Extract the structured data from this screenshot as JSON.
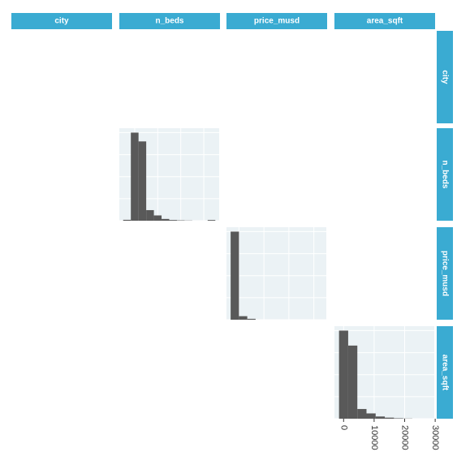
{
  "strips": [
    "city",
    "n_beds",
    "price_musd",
    "area_sqft"
  ],
  "chart_data": [
    {
      "type": "histogram",
      "color": "#595959",
      "grid": true,
      "show_tick_labels": false,
      "bins": [
        -0.5,
        0.5,
        1.5,
        2.5,
        3.5,
        4.5,
        5.5,
        6.5,
        7.5,
        8.5,
        9.5,
        10.5,
        11.5
      ],
      "counts": [
        10,
        1000,
        900,
        120,
        60,
        20,
        8,
        4,
        2,
        0,
        0,
        8
      ],
      "xlim": [
        -1,
        12
      ],
      "ylim": [
        0,
        1050
      ],
      "xticks": [
        1,
        4,
        7,
        10
      ],
      "yticks": [
        0,
        250,
        500,
        750,
        1000
      ]
    },
    {
      "type": "histogram",
      "color": "#595959",
      "grid": true,
      "show_tick_labels": false,
      "bins": [
        0,
        1,
        2,
        3
      ],
      "counts": [
        1000,
        40,
        10
      ],
      "xlim": [
        -0.5,
        11.5
      ],
      "ylim": [
        0,
        1050
      ],
      "xticks": [
        1,
        4,
        7,
        10
      ],
      "yticks": [
        0,
        250,
        500,
        750,
        1000
      ]
    },
    {
      "type": "histogram",
      "color": "#595959",
      "grid": true,
      "show_tick_labels": true,
      "bins": [
        -1500,
        1500,
        4500,
        7500,
        10500,
        13500,
        16500,
        19500,
        22500
      ],
      "counts": [
        1000,
        830,
        110,
        60,
        25,
        12,
        5,
        2
      ],
      "xlim": [
        -3000,
        29700
      ],
      "ylim": [
        0,
        1050
      ],
      "xticks": [
        0,
        10000,
        20000,
        30000
      ],
      "yticks": [
        0,
        250,
        500,
        750,
        1000
      ]
    }
  ]
}
